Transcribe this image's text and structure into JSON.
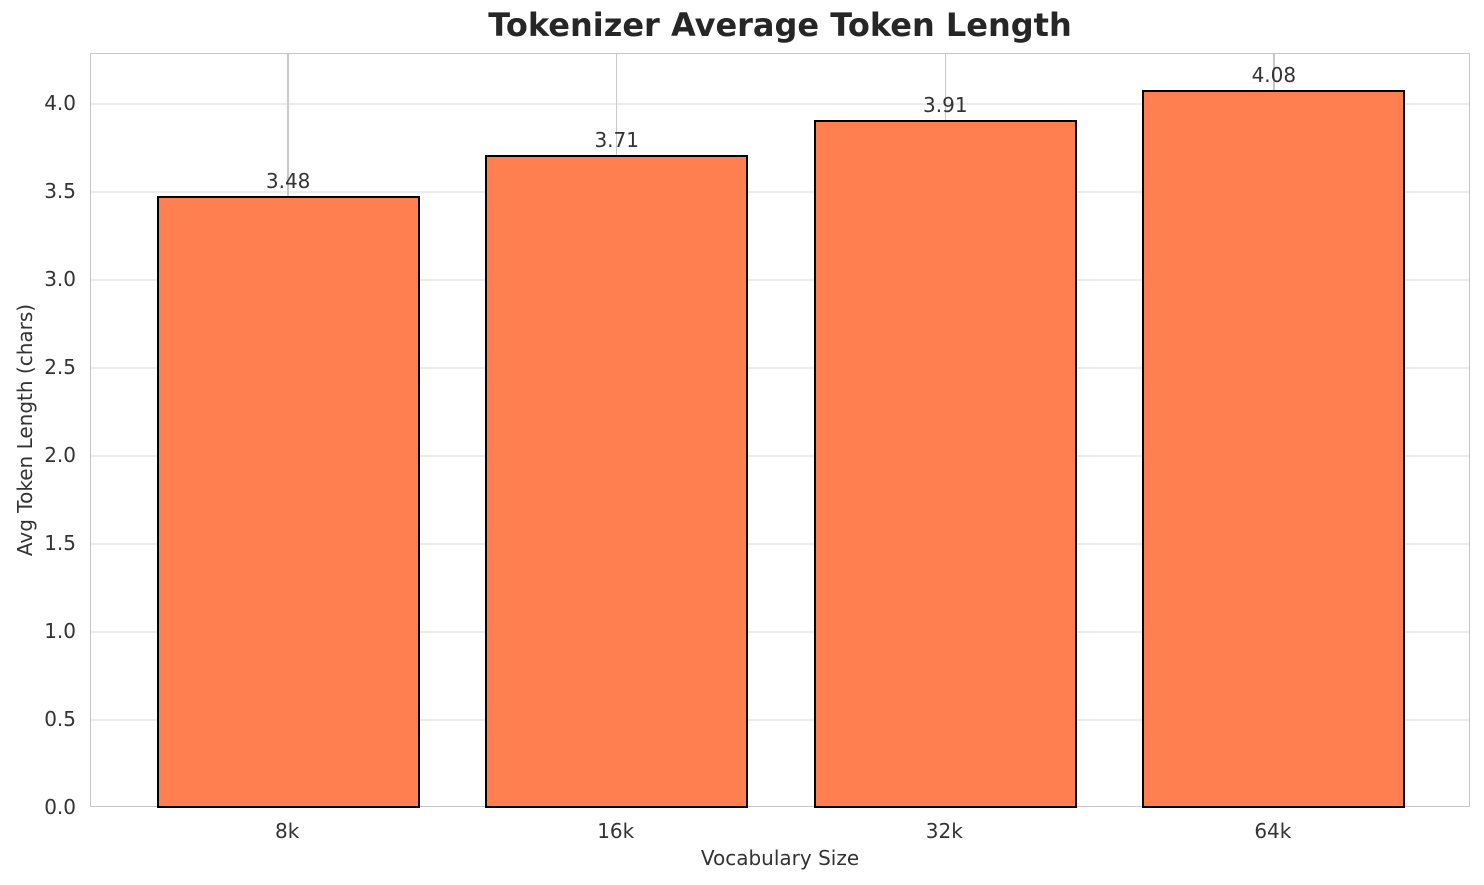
{
  "chart_data": {
    "type": "bar",
    "title": "Tokenizer Average Token Length",
    "xlabel": "Vocabulary Size",
    "ylabel": "Avg Token Length (chars)",
    "categories": [
      "8k",
      "16k",
      "32k",
      "64k"
    ],
    "values": [
      3.48,
      3.71,
      3.91,
      4.08
    ],
    "bar_labels": [
      "3.48",
      "3.71",
      "3.91",
      "4.08"
    ],
    "yticks": [
      0.0,
      0.5,
      1.0,
      1.5,
      2.0,
      2.5,
      3.0,
      3.5,
      4.0
    ],
    "ytick_labels": [
      "0.0",
      "0.5",
      "1.0",
      "1.5",
      "2.0",
      "2.5",
      "3.0",
      "3.5",
      "4.0"
    ],
    "ylim": [
      0,
      4.284
    ],
    "xlim": [
      -0.6,
      3.6
    ],
    "bar_width": 0.8,
    "grid": "both",
    "legend": "none",
    "colors": {
      "bar_fill": "#FF7F50",
      "bar_edge": "#000000",
      "grid_h": "#ececec",
      "grid_v": "#c9c9c9",
      "spine": "#c6c6c6",
      "text": "#333333",
      "title": "#262626",
      "background": "#ffffff"
    }
  }
}
